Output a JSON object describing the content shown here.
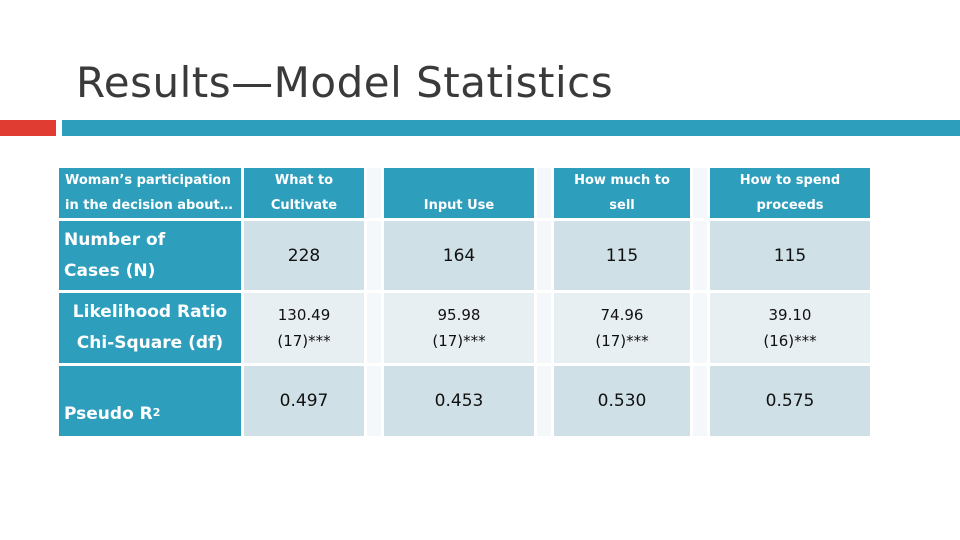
{
  "title": "Results—Model Statistics",
  "colors": {
    "accent_red": "#e03c31",
    "teal": "#2e9ebd",
    "row_dark": "#cfe0e7",
    "row_light": "#e8eff3",
    "gap": "#f4f8fa"
  },
  "table": {
    "header": {
      "row_label_line1": "Woman’s participation",
      "row_label_line2": "in the decision about…",
      "columns": [
        {
          "line1": "What to",
          "line2": "Cultivate"
        },
        {
          "line1": "",
          "line2": "Input Use"
        },
        {
          "line1": "How much to",
          "line2": "sell"
        },
        {
          "line1": "How to spend",
          "line2": "proceeds"
        }
      ]
    },
    "rows": [
      {
        "label_line1": "Number of",
        "label_line2": "Cases (N)",
        "values": [
          "228",
          "164",
          "115",
          "115"
        ]
      },
      {
        "label_line1": "Likelihood Ratio",
        "label_line2": "Chi-Square (df)",
        "values": [
          {
            "line1": "130.49",
            "line2": "(17)***"
          },
          {
            "line1": "95.98",
            "line2": "(17)***"
          },
          {
            "line1": "74.96",
            "line2": "(17)***"
          },
          {
            "line1": "39.10",
            "line2": "(16)***"
          }
        ]
      },
      {
        "label": "Pseudo R",
        "label_sup": "2",
        "values": [
          "0.497",
          "0.453",
          "0.530",
          "0.575"
        ]
      }
    ]
  }
}
